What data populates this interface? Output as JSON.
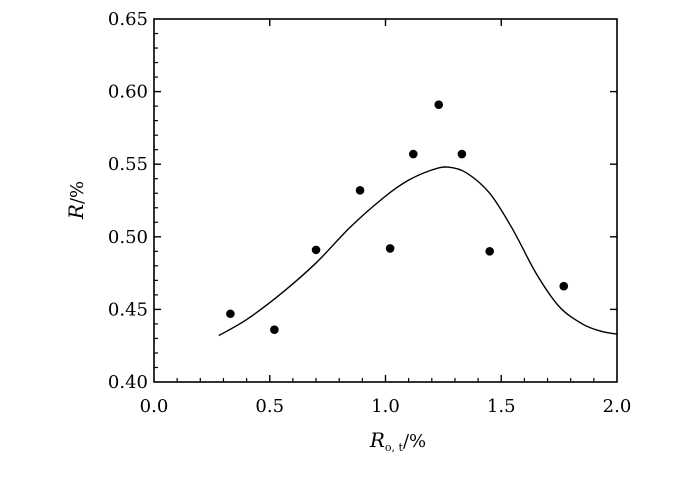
{
  "chart_data": {
    "type": "scatter",
    "xlabel": {
      "main": "R",
      "sub": "o, t",
      "unit": "/%"
    },
    "ylabel": {
      "main": "R",
      "unit": "/%"
    },
    "xlim": [
      0.0,
      2.0
    ],
    "ylim": [
      0.4,
      0.65
    ],
    "x_ticks": [
      "0.0",
      "0.5",
      "1.0",
      "1.5",
      "2.0"
    ],
    "y_ticks": [
      "0.40",
      "0.45",
      "0.50",
      "0.55",
      "0.60",
      "0.65"
    ],
    "grid": false,
    "series": [
      {
        "kind": "points",
        "points": [
          {
            "x": 0.33,
            "y": 0.447
          },
          {
            "x": 0.52,
            "y": 0.436
          },
          {
            "x": 0.7,
            "y": 0.491
          },
          {
            "x": 0.89,
            "y": 0.532
          },
          {
            "x": 1.02,
            "y": 0.492
          },
          {
            "x": 1.12,
            "y": 0.557
          },
          {
            "x": 1.23,
            "y": 0.591
          },
          {
            "x": 1.33,
            "y": 0.557
          },
          {
            "x": 1.45,
            "y": 0.49
          },
          {
            "x": 1.77,
            "y": 0.466
          }
        ]
      },
      {
        "kind": "curve",
        "points": [
          {
            "x": 0.28,
            "y": 0.432
          },
          {
            "x": 0.4,
            "y": 0.443
          },
          {
            "x": 0.55,
            "y": 0.461
          },
          {
            "x": 0.7,
            "y": 0.482
          },
          {
            "x": 0.85,
            "y": 0.507
          },
          {
            "x": 1.0,
            "y": 0.528
          },
          {
            "x": 1.1,
            "y": 0.539
          },
          {
            "x": 1.2,
            "y": 0.546
          },
          {
            "x": 1.27,
            "y": 0.548
          },
          {
            "x": 1.35,
            "y": 0.544
          },
          {
            "x": 1.45,
            "y": 0.53
          },
          {
            "x": 1.55,
            "y": 0.505
          },
          {
            "x": 1.65,
            "y": 0.475
          },
          {
            "x": 1.75,
            "y": 0.452
          },
          {
            "x": 1.85,
            "y": 0.44
          },
          {
            "x": 1.93,
            "y": 0.435
          },
          {
            "x": 2.0,
            "y": 0.433
          }
        ]
      }
    ]
  }
}
